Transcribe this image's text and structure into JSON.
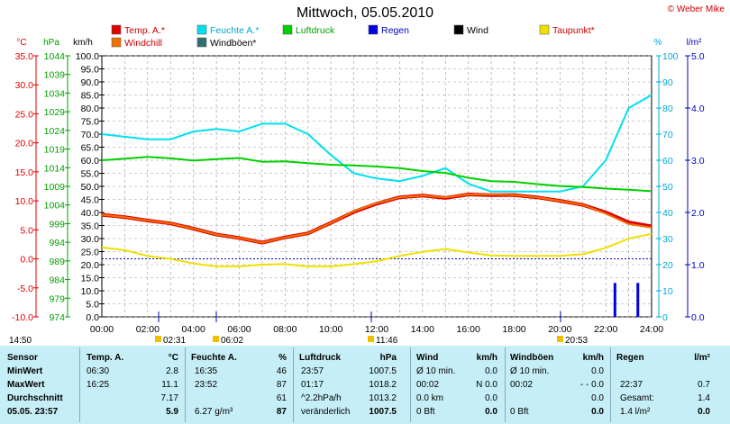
{
  "header": {
    "title": "Mittwoch, 05.05.2010",
    "credit": "© Weber Mike"
  },
  "legend": [
    {
      "label": "Temp. A.*",
      "color": "#e00000"
    },
    {
      "label": "Feuchte A.*",
      "color": "#00e0f0"
    },
    {
      "label": "Luftdruck",
      "color": "#00d000"
    },
    {
      "label": "Regen",
      "color": "#0000e0"
    },
    {
      "label": "Wind",
      "color": "#000000"
    },
    {
      "label": "Taupunkt*",
      "color": "#f0e000"
    },
    {
      "label": "Windchill",
      "color": "#f07000"
    },
    {
      "label": "Windböen*",
      "color": "#307070"
    }
  ],
  "axes_units": {
    "temp": "°C",
    "pressure": "hPa",
    "wind": "km/h",
    "humidity": "%",
    "rain": "l/m²"
  },
  "markers": {
    "left_time": "14:50",
    "events": [
      "02:31",
      "06:02",
      "11:46",
      "20:53"
    ]
  },
  "chart_data": {
    "type": "line",
    "title": "Mittwoch, 05.05.2010",
    "x_labels": [
      "00:00",
      "02:00",
      "04:00",
      "06:00",
      "08:00",
      "10:00",
      "12:00",
      "14:00",
      "16:00",
      "18:00",
      "20:00",
      "22:00",
      "24:00"
    ],
    "xlim_hours": [
      0,
      24
    ],
    "axes": {
      "temp_c": {
        "ticks": [
          35.0,
          30.0,
          25.0,
          20.0,
          15.0,
          10.0,
          5.0,
          0.0,
          -5.0,
          -10.0
        ],
        "range": [
          -10,
          35
        ],
        "color": "#e00000"
      },
      "pressure_hpa": {
        "ticks": [
          1044,
          1039,
          1034,
          1029,
          1024,
          1019,
          1014,
          1009,
          1004,
          999,
          994,
          989,
          984,
          979,
          974
        ],
        "range": [
          974,
          1044
        ],
        "color": "#00c000"
      },
      "wind_kmh": {
        "ticks": [
          100.0,
          95.0,
          90.0,
          85.0,
          80.0,
          75.0,
          70.0,
          65.0,
          60.0,
          55.0,
          50.0,
          45.0,
          40.0,
          35.0,
          30.0,
          25.0,
          20.0,
          15.0,
          10.0,
          5.0,
          0.0
        ],
        "range": [
          0,
          100
        ],
        "color": "#000000"
      },
      "humidity_pct": {
        "ticks": [
          100,
          90,
          80,
          70,
          60,
          50,
          40,
          30,
          20,
          10,
          0
        ],
        "range": [
          0,
          100
        ],
        "color": "#00b0e0"
      },
      "rain_lm2": {
        "ticks": [
          5.0,
          4.0,
          3.0,
          2.0,
          1.0,
          0.0
        ],
        "range": [
          0,
          5
        ],
        "color": "#0000c0"
      }
    },
    "series": [
      {
        "name": "Temp. A.*",
        "axis": "temp_c",
        "color": "#e00000",
        "x": [
          0,
          1,
          2,
          3,
          4,
          5,
          6,
          7,
          8,
          9,
          10,
          11,
          12,
          13,
          14,
          15,
          16,
          17,
          18,
          19,
          20,
          21,
          22,
          23,
          24
        ],
        "y": [
          7.6,
          7.2,
          6.6,
          6.1,
          5.2,
          4.2,
          3.6,
          2.8,
          3.7,
          4.4,
          6.2,
          8.1,
          9.5,
          10.6,
          10.9,
          10.5,
          11.1,
          11.0,
          11.0,
          10.6,
          10.0,
          9.3,
          8.0,
          6.3,
          5.6
        ]
      },
      {
        "name": "Windchill",
        "axis": "temp_c",
        "color": "#f07000",
        "x": [
          0,
          1,
          2,
          3,
          4,
          5,
          6,
          7,
          8,
          9,
          10,
          11,
          12,
          13,
          14,
          15,
          16,
          17,
          18,
          19,
          20,
          21,
          22,
          23,
          24
        ],
        "y": [
          7.6,
          7.2,
          6.6,
          6.1,
          5.2,
          4.2,
          3.6,
          2.8,
          3.7,
          4.4,
          6.2,
          8.2,
          9.6,
          10.6,
          10.9,
          10.6,
          11.1,
          11.1,
          11.0,
          10.6,
          10.0,
          9.3,
          7.8,
          6.0,
          5.4
        ]
      },
      {
        "name": "Feuchte A.*",
        "axis": "humidity_pct",
        "color": "#00e0f0",
        "x": [
          0,
          1,
          2,
          3,
          4,
          5,
          6,
          7,
          8,
          9,
          10,
          11,
          12,
          13,
          14,
          15,
          16,
          17,
          18,
          19,
          20,
          21,
          22,
          23,
          24
        ],
        "y": [
          70,
          69,
          68,
          68,
          71,
          72,
          71,
          74,
          74,
          70,
          62,
          55,
          53,
          52,
          54,
          57,
          51,
          48,
          48,
          48,
          48,
          50,
          60,
          80,
          85
        ]
      },
      {
        "name": "Luftdruck",
        "axis": "pressure_hpa",
        "color": "#00d000",
        "x": [
          0,
          1,
          2,
          3,
          4,
          5,
          6,
          7,
          8,
          9,
          10,
          11,
          12,
          13,
          14,
          15,
          16,
          17,
          18,
          19,
          20,
          21,
          22,
          23,
          24
        ],
        "y": [
          1016.0,
          1016.4,
          1016.9,
          1016.5,
          1015.9,
          1016.3,
          1016.6,
          1015.6,
          1015.7,
          1015.2,
          1014.8,
          1014.6,
          1014.3,
          1013.9,
          1013.1,
          1012.6,
          1011.3,
          1010.4,
          1010.2,
          1009.6,
          1009.1,
          1008.8,
          1008.4,
          1008.1,
          1007.7
        ]
      },
      {
        "name": "Taupunkt*",
        "axis": "temp_c",
        "color": "#f0e000",
        "x": [
          0,
          1,
          2,
          3,
          4,
          5,
          6,
          7,
          8,
          9,
          10,
          11,
          12,
          13,
          14,
          15,
          16,
          17,
          18,
          19,
          20,
          21,
          22,
          23,
          24
        ],
        "y": [
          2.0,
          1.5,
          0.5,
          0.0,
          -0.8,
          -1.3,
          -1.3,
          -1.0,
          -0.9,
          -1.3,
          -1.3,
          -0.9,
          -0.4,
          0.5,
          1.2,
          1.7,
          1.1,
          0.6,
          0.5,
          0.5,
          0.5,
          0.8,
          1.9,
          3.5,
          4.3
        ]
      },
      {
        "name": "Regen",
        "axis": "rain_lm2",
        "color": "#0000e0",
        "type": "bar",
        "x": [
          22.4,
          23.4
        ],
        "y": [
          0.65,
          0.65
        ]
      }
    ],
    "reference_line": {
      "axis": "temp_c",
      "value": 0.0,
      "style": "dashed",
      "color": "#0000c0"
    },
    "grid": true
  },
  "stats": {
    "headers": {
      "sensor": "Sensor",
      "temp": "Temp. A.",
      "temp_u": "°C",
      "hum": "Feuchte A.",
      "hum_u": "%",
      "press": "Luftdruck",
      "press_u": "hPa",
      "wind": "Wind",
      "wind_u": "km/h",
      "gust": "Windböen",
      "gust_u": "km/h",
      "rain": "Regen",
      "rain_u": "l/m²"
    },
    "rows": [
      {
        "label": "MinWert",
        "temp_t": "06:30",
        "temp_v": "2.8",
        "hum_t": "16:35",
        "hum_v": "46",
        "press_t": "23:57",
        "press_v": "1007.5",
        "wind_t": "Ø 10 min.",
        "wind_v": "0.0",
        "gust_t": "Ø 10 min.",
        "gust_v": "0.0",
        "rain_t": "",
        "rain_v": ""
      },
      {
        "label": "MaxWert",
        "temp_t": "16:25",
        "temp_v": "11.1",
        "hum_t": "23:52",
        "hum_v": "87",
        "press_t": "01:17",
        "press_v": "1018.2",
        "wind_t": "00:02",
        "wind_v": "N 0.0",
        "gust_t": "00:02",
        "gust_v": "- - 0.0",
        "rain_t": "22:37",
        "rain_v": "0.7"
      },
      {
        "label": "Durchschnitt",
        "temp_t": "",
        "temp_v": "7.17",
        "hum_t": "",
        "hum_v": "61",
        "press_t": "^2.2hPa/h",
        "press_v": "1013.2",
        "wind_t": "0.0 km",
        "wind_v": "0.0",
        "gust_t": "",
        "gust_v": "0.0",
        "rain_t": "Gesamt:",
        "rain_v": "1.4"
      },
      {
        "label": "05.05. 23:57",
        "temp_t": "",
        "temp_v": "5.9",
        "hum_t": "6.27 g/m³",
        "hum_v": "87",
        "press_t": "veränderlich",
        "press_v": "1007.5",
        "wind_t": "0 Bft",
        "wind_v": "0.0",
        "gust_t": "0 Bft",
        "gust_v": "0.0",
        "rain_t": "1.4 l/m²",
        "rain_v": "0.0"
      }
    ]
  }
}
